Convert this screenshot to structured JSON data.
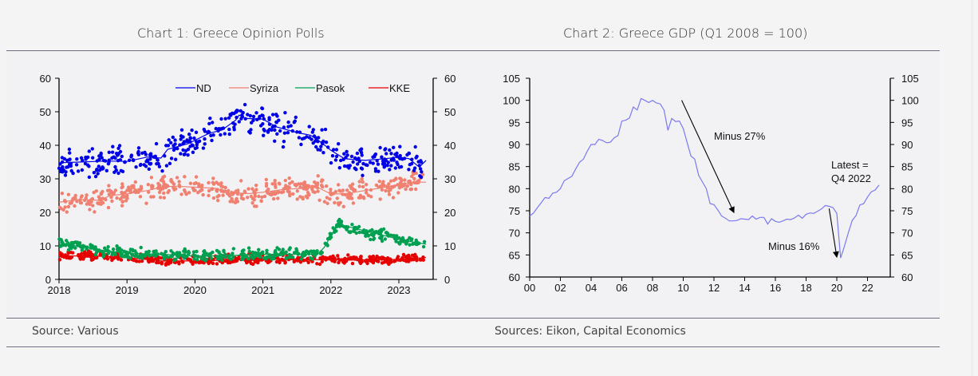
{
  "chart1": {
    "title": "Chart 1: Greece Opinion Polls",
    "source": "Source: Various"
  },
  "chart2": {
    "title": "Chart 2: Greece GDP (Q1 2008 = 100)",
    "source": "Sources: Eikon, Capital Economics"
  },
  "chart_data": [
    {
      "type": "scatter",
      "title": "Chart 1: Greece Opinion Polls",
      "xlabel": "",
      "ylabel": "",
      "xlim": [
        2018.0,
        2023.42
      ],
      "ylim": [
        0,
        60
      ],
      "yticks": [
        0,
        10,
        20,
        30,
        40,
        50,
        60
      ],
      "xticks": [
        "2018",
        "2019",
        "2020",
        "2021",
        "2022",
        "2023"
      ],
      "dual_y_axis": true,
      "legend": "top-right",
      "grid": false,
      "series": [
        {
          "name": "ND",
          "color": "#0000e6",
          "trend": [
            [
              2018.0,
              34.8
            ],
            [
              2018.3,
              35.0
            ],
            [
              2018.7,
              35.3
            ],
            [
              2019.0,
              35.2
            ],
            [
              2019.3,
              36.5
            ],
            [
              2019.5,
              36.2
            ],
            [
              2019.6,
              38.8
            ],
            [
              2019.9,
              40.5
            ],
            [
              2020.2,
              43.5
            ],
            [
              2020.4,
              44.6
            ],
            [
              2020.6,
              47.5
            ],
            [
              2020.65,
              49.0
            ],
            [
              2020.75,
              48.0
            ],
            [
              2021.0,
              47.8
            ],
            [
              2021.2,
              45.5
            ],
            [
              2021.5,
              43.8
            ],
            [
              2021.7,
              43.0
            ],
            [
              2021.85,
              41.0
            ],
            [
              2022.0,
              38.5
            ],
            [
              2022.2,
              36.0
            ],
            [
              2022.5,
              35.5
            ],
            [
              2022.8,
              36.0
            ],
            [
              2023.0,
              36.5
            ],
            [
              2023.15,
              36.0
            ],
            [
              2023.3,
              33.5
            ],
            [
              2023.4,
              35.5
            ]
          ],
          "points_summary": "scattered polls around trend, spread ±4"
        },
        {
          "name": "Syriza",
          "color": "#f08070",
          "trend": [
            [
              2018.0,
              23.0
            ],
            [
              2018.3,
              23.8
            ],
            [
              2018.6,
              23.6
            ],
            [
              2018.75,
              25.0
            ],
            [
              2019.0,
              25.5
            ],
            [
              2019.3,
              26.5
            ],
            [
              2019.5,
              27.5
            ],
            [
              2019.7,
              27.8
            ],
            [
              2020.0,
              27.5
            ],
            [
              2020.3,
              27.2
            ],
            [
              2020.5,
              25.8
            ],
            [
              2020.8,
              25.6
            ],
            [
              2021.0,
              26.0
            ],
            [
              2021.3,
              26.8
            ],
            [
              2021.6,
              27.2
            ],
            [
              2021.8,
              27.5
            ],
            [
              2022.0,
              25.5
            ],
            [
              2022.2,
              25.5
            ],
            [
              2022.5,
              26.5
            ],
            [
              2022.8,
              27.5
            ],
            [
              2023.0,
              28.2
            ],
            [
              2023.2,
              29.0
            ],
            [
              2023.4,
              29.0
            ]
          ],
          "points_summary": "scattered polls around trend, spread ±3"
        },
        {
          "name": "Pasok",
          "color": "#00a050",
          "trend": [
            [
              2018.0,
              11.0
            ],
            [
              2018.3,
              9.8
            ],
            [
              2018.7,
              8.5
            ],
            [
              2019.0,
              7.8
            ],
            [
              2019.5,
              7.5
            ],
            [
              2020.0,
              7.0
            ],
            [
              2020.5,
              7.0
            ],
            [
              2020.8,
              7.5
            ],
            [
              2021.0,
              7.5
            ],
            [
              2021.5,
              7.5
            ],
            [
              2021.8,
              7.5
            ],
            [
              2021.9,
              9.5
            ],
            [
              2022.0,
              13.0
            ],
            [
              2022.1,
              16.5
            ],
            [
              2022.3,
              15.5
            ],
            [
              2022.6,
              14.0
            ],
            [
              2022.9,
              12.5
            ],
            [
              2023.1,
              11.5
            ],
            [
              2023.4,
              10.5
            ]
          ],
          "points_summary": "scattered polls around trend, spread ±2"
        },
        {
          "name": "KKE",
          "color": "#e60000",
          "trend": [
            [
              2018.0,
              7.0
            ],
            [
              2018.5,
              7.0
            ],
            [
              2019.0,
              6.5
            ],
            [
              2019.5,
              5.5
            ],
            [
              2020.0,
              5.5
            ],
            [
              2020.5,
              5.8
            ],
            [
              2021.0,
              6.0
            ],
            [
              2021.5,
              6.0
            ],
            [
              2022.0,
              5.8
            ],
            [
              2022.5,
              5.8
            ],
            [
              2023.0,
              6.0
            ],
            [
              2023.4,
              6.5
            ]
          ],
          "points_summary": "scattered polls around trend, spread ±1.5"
        }
      ]
    },
    {
      "type": "line",
      "title": "Chart 2: Greece GDP (Q1 2008 = 100)",
      "xlabel": "",
      "ylabel": "",
      "xlim": [
        2000,
        2023.3
      ],
      "ylim": [
        60,
        105
      ],
      "yticks": [
        60,
        65,
        70,
        75,
        80,
        85,
        90,
        95,
        100,
        105
      ],
      "xticks": [
        "00",
        "02",
        "04",
        "06",
        "08",
        "10",
        "12",
        "14",
        "16",
        "18",
        "20",
        "22"
      ],
      "dual_y_axis": true,
      "grid": false,
      "series": [
        {
          "name": "Greece GDP",
          "color": "#7a7af0",
          "x": [
            2000.0,
            2000.25,
            2000.5,
            2000.75,
            2001.0,
            2001.25,
            2001.5,
            2001.75,
            2002.0,
            2002.25,
            2002.5,
            2002.75,
            2003.0,
            2003.25,
            2003.5,
            2003.75,
            2004.0,
            2004.25,
            2004.5,
            2004.75,
            2005.0,
            2005.25,
            2005.5,
            2005.75,
            2006.0,
            2006.25,
            2006.5,
            2006.75,
            2007.0,
            2007.25,
            2007.5,
            2007.75,
            2008.0,
            2008.25,
            2008.5,
            2008.75,
            2009.0,
            2009.25,
            2009.5,
            2009.75,
            2010.0,
            2010.25,
            2010.5,
            2010.75,
            2011.0,
            2011.25,
            2011.5,
            2011.75,
            2012.0,
            2012.25,
            2012.5,
            2012.75,
            2013.0,
            2013.25,
            2013.5,
            2013.75,
            2014.0,
            2014.25,
            2014.5,
            2014.75,
            2015.0,
            2015.25,
            2015.5,
            2015.75,
            2016.0,
            2016.25,
            2016.5,
            2016.75,
            2017.0,
            2017.25,
            2017.5,
            2017.75,
            2018.0,
            2018.25,
            2018.5,
            2018.75,
            2019.0,
            2019.25,
            2019.5,
            2019.75,
            2020.0,
            2020.25,
            2020.5,
            2020.75,
            2021.0,
            2021.25,
            2021.5,
            2021.75,
            2022.0,
            2022.25,
            2022.5,
            2022.75
          ],
          "values": [
            73.8,
            74.5,
            75.7,
            76.8,
            78.0,
            77.8,
            79.0,
            79.2,
            80.0,
            81.8,
            82.3,
            82.8,
            84.5,
            86.0,
            86.7,
            88.5,
            90.0,
            90.0,
            91.2,
            90.9,
            90.4,
            90.5,
            91.5,
            92.0,
            95.3,
            95.5,
            96.0,
            98.5,
            97.8,
            100.4,
            100.0,
            99.5,
            100.0,
            99.4,
            99.2,
            97.8,
            93.2,
            95.9,
            95.2,
            95.3,
            93.6,
            90.5,
            87.4,
            86.7,
            83.0,
            81.5,
            80.0,
            76.6,
            76.4,
            75.2,
            73.8,
            73.3,
            72.7,
            72.7,
            72.8,
            73.2,
            73.1,
            73.0,
            73.8,
            73.1,
            73.5,
            73.5,
            72.0,
            73.2,
            72.6,
            72.4,
            72.7,
            73.1,
            73.0,
            73.4,
            74.0,
            73.3,
            74.2,
            74.5,
            74.4,
            74.9,
            75.4,
            76.2,
            76.0,
            75.7,
            74.4,
            64.3,
            67.0,
            70.0,
            72.8,
            73.9,
            76.3,
            76.6,
            78.1,
            79.3,
            79.7,
            80.8
          ]
        }
      ],
      "annotations": [
        {
          "text": "Minus 27%",
          "type": "arrow",
          "from": [
            2009.9,
            100.0
          ],
          "to": [
            2013.3,
            74.6
          ]
        },
        {
          "text": "Minus 16%",
          "type": "arrow",
          "from": [
            2019.5,
            75.5
          ],
          "to": [
            2020.0,
            64.5
          ]
        },
        {
          "text": "Latest = Q4 2022",
          "type": "label"
        }
      ]
    }
  ]
}
